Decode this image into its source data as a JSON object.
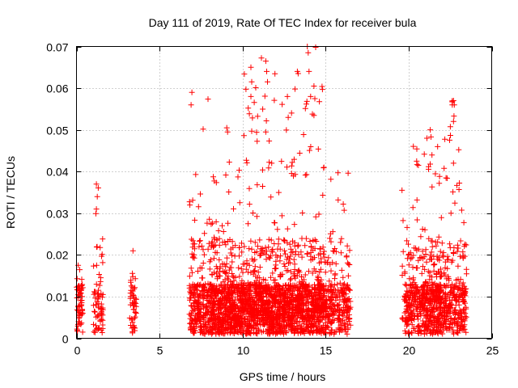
{
  "chart_data": {
    "type": "scatter",
    "title": "Day 111 of 2019, Rate Of TEC Index for receiver bula",
    "xlabel": "GPS time / hours",
    "ylabel": "ROTI / TECUs",
    "xlim": [
      0,
      25
    ],
    "ylim": [
      0,
      0.07
    ],
    "x_ticks": [
      0,
      5,
      10,
      15,
      20,
      25
    ],
    "y_ticks": [
      0,
      0.01,
      0.02,
      0.03,
      0.04,
      0.05,
      0.06,
      0.07
    ],
    "x_tick_labels": [
      "0",
      "5",
      "10",
      "15",
      "20",
      "25"
    ],
    "y_tick_labels": [
      "0",
      "0.01",
      "0.02",
      "0.03",
      "0.04",
      "0.05",
      "0.06",
      "0.07"
    ],
    "grid": true,
    "marker": "+",
    "color": "#ff0000",
    "series": [
      {
        "name": "ROTI",
        "clusters": [
          {
            "x_start": 0.0,
            "x_end": 0.4,
            "y_max": 0.018,
            "n": 60
          },
          {
            "x_start": 1.0,
            "x_end": 1.6,
            "y_max": 0.037,
            "n": 70
          },
          {
            "x_start": 3.2,
            "x_end": 3.6,
            "y_max": 0.021,
            "n": 50
          },
          {
            "x_start": 6.8,
            "x_end": 8.0,
            "y_max": 0.059,
            "n": 250
          },
          {
            "x_start": 8.0,
            "x_end": 9.0,
            "y_max": 0.043,
            "n": 300
          },
          {
            "x_start": 9.0,
            "x_end": 10.0,
            "y_max": 0.05,
            "n": 300
          },
          {
            "x_start": 10.0,
            "x_end": 11.0,
            "y_max": 0.066,
            "n": 300
          },
          {
            "x_start": 11.0,
            "x_end": 12.0,
            "y_max": 0.068,
            "n": 300
          },
          {
            "x_start": 12.0,
            "x_end": 13.0,
            "y_max": 0.058,
            "n": 300
          },
          {
            "x_start": 13.0,
            "x_end": 14.0,
            "y_max": 0.064,
            "n": 300
          },
          {
            "x_start": 14.0,
            "x_end": 15.0,
            "y_max": 0.07,
            "n": 300
          },
          {
            "x_start": 15.0,
            "x_end": 16.5,
            "y_max": 0.041,
            "n": 250
          },
          {
            "x_start": 19.6,
            "x_end": 19.8,
            "y_max": 0.0355,
            "n": 20
          },
          {
            "x_start": 19.8,
            "x_end": 21.0,
            "y_max": 0.048,
            "n": 250
          },
          {
            "x_start": 21.0,
            "x_end": 22.0,
            "y_max": 0.05,
            "n": 280
          },
          {
            "x_start": 22.0,
            "x_end": 23.5,
            "y_max": 0.057,
            "n": 280
          }
        ],
        "outliers": [
          {
            "x": 0.1,
            "y": 0.0175
          },
          {
            "x": 1.2,
            "y": 0.037
          },
          {
            "x": 1.25,
            "y": 0.034
          },
          {
            "x": 1.2,
            "y": 0.031
          },
          {
            "x": 3.4,
            "y": 0.021
          },
          {
            "x": 6.95,
            "y": 0.059
          },
          {
            "x": 6.9,
            "y": 0.056
          },
          {
            "x": 9.05,
            "y": 0.0505
          },
          {
            "x": 9.1,
            "y": 0.0495
          },
          {
            "x": 10.5,
            "y": 0.065
          },
          {
            "x": 10.55,
            "y": 0.0615
          },
          {
            "x": 10.5,
            "y": 0.058
          },
          {
            "x": 11.4,
            "y": 0.0665
          },
          {
            "x": 11.45,
            "y": 0.064
          },
          {
            "x": 11.5,
            "y": 0.0615
          },
          {
            "x": 11.4,
            "y": 0.0495
          },
          {
            "x": 12.7,
            "y": 0.058
          },
          {
            "x": 12.75,
            "y": 0.053
          },
          {
            "x": 13.3,
            "y": 0.064
          },
          {
            "x": 13.35,
            "y": 0.0635
          },
          {
            "x": 13.9,
            "y": 0.07
          },
          {
            "x": 13.95,
            "y": 0.0685
          },
          {
            "x": 14.0,
            "y": 0.064
          },
          {
            "x": 14.1,
            "y": 0.058
          },
          {
            "x": 14.3,
            "y": 0.0605
          },
          {
            "x": 14.35,
            "y": 0.0575
          },
          {
            "x": 14.9,
            "y": 0.041
          },
          {
            "x": 19.6,
            "y": 0.0355
          },
          {
            "x": 21.1,
            "y": 0.048
          },
          {
            "x": 21.3,
            "y": 0.05
          },
          {
            "x": 22.7,
            "y": 0.057
          },
          {
            "x": 22.75,
            "y": 0.056
          },
          {
            "x": 22.7,
            "y": 0.052
          },
          {
            "x": 22.7,
            "y": 0.042
          }
        ]
      }
    ]
  }
}
